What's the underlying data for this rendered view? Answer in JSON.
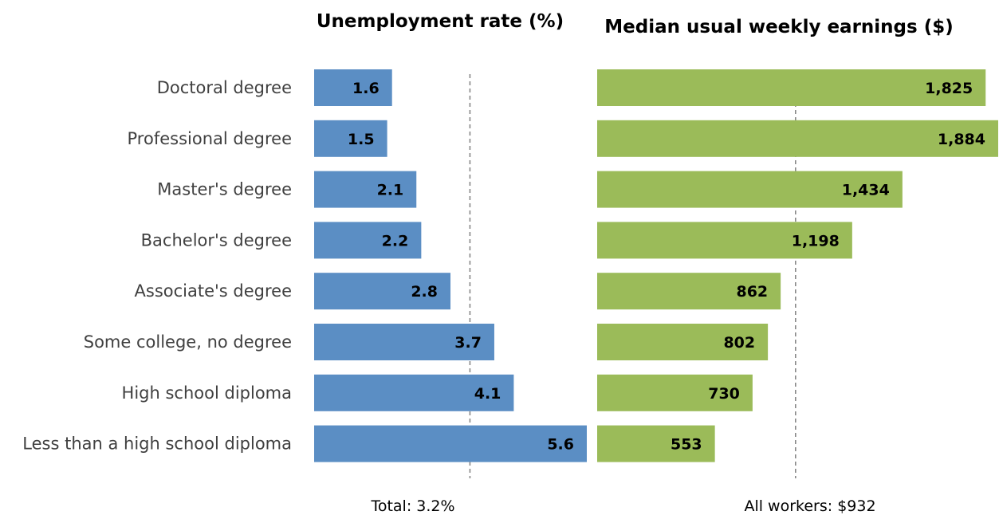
{
  "chart_data": [
    {
      "type": "bar",
      "orientation": "horizontal",
      "title": "Unemployment rate (%)",
      "categories": [
        "Doctoral degree",
        "Professional degree",
        "Master's degree",
        "Bachelor's degree",
        "Associate's degree",
        "Some college, no degree",
        "High school diploma",
        "Less than a high school diploma"
      ],
      "values": [
        1.6,
        1.5,
        2.1,
        2.2,
        2.8,
        3.7,
        4.1,
        5.6
      ],
      "value_labels": [
        "1.6",
        "1.5",
        "2.1",
        "2.2",
        "2.8",
        "3.7",
        "4.1",
        "5.6"
      ],
      "reference": {
        "value": 3.2,
        "label": "Total: 3.2%"
      },
      "xlim": [
        0,
        5.6
      ],
      "color": "#5b8ec4"
    },
    {
      "type": "bar",
      "orientation": "horizontal",
      "title": "Median usual weekly earnings ($)",
      "categories": [
        "Doctoral degree",
        "Professional degree",
        "Master's degree",
        "Bachelor's degree",
        "Associate's degree",
        "Some college, no degree",
        "High school diploma",
        "Less than a high school diploma"
      ],
      "values": [
        1825,
        1884,
        1434,
        1198,
        862,
        802,
        730,
        553
      ],
      "value_labels": [
        "1,825",
        "1,884",
        "1,434",
        "1,198",
        "862",
        "802",
        "730",
        "553"
      ],
      "reference": {
        "value": 932,
        "label": "All workers: $932"
      },
      "xlim": [
        0,
        1884
      ],
      "color": "#9bbb59"
    }
  ]
}
